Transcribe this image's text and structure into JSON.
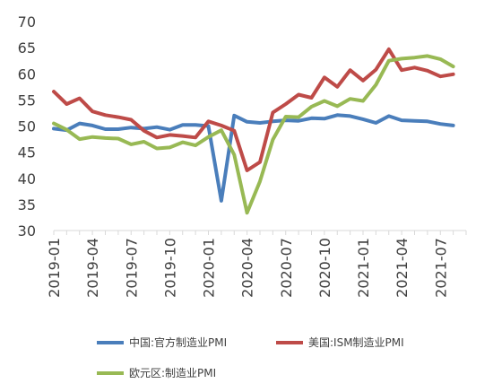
{
  "chart_data": {
    "type": "line",
    "title": "",
    "xlabel": "",
    "ylabel": "",
    "ylim": [
      30,
      70
    ],
    "yticks": [
      30,
      35,
      40,
      45,
      50,
      55,
      60,
      65,
      70
    ],
    "grid": false,
    "legend_position": "bottom",
    "x": [
      "2019-01",
      "2019-02",
      "2019-03",
      "2019-04",
      "2019-05",
      "2019-06",
      "2019-07",
      "2019-08",
      "2019-09",
      "2019-10",
      "2019-11",
      "2019-12",
      "2020-01",
      "2020-02",
      "2020-03",
      "2020-04",
      "2020-05",
      "2020-06",
      "2020-07",
      "2020-08",
      "2020-09",
      "2020-10",
      "2020-11",
      "2020-12",
      "2021-01",
      "2021-02",
      "2021-03",
      "2021-04",
      "2021-05",
      "2021-06",
      "2021-07",
      "2021-08",
      "2021-09"
    ],
    "xtick_labels": [
      "2019-01",
      "2019-04",
      "2019-07",
      "2019-10",
      "2020-01",
      "2020-04",
      "2020-07",
      "2020-10",
      "2021-01",
      "2021-04",
      "2021-07"
    ],
    "series": [
      {
        "name": "中国:官方制造业PMI",
        "color": "#4a7ebb",
        "values": [
          49.5,
          49.2,
          50.5,
          50.1,
          49.4,
          49.4,
          49.7,
          49.5,
          49.8,
          49.3,
          50.2,
          50.2,
          50.0,
          35.7,
          52.0,
          50.8,
          50.6,
          50.9,
          51.1,
          51.0,
          51.5,
          51.4,
          52.1,
          51.9,
          51.3,
          50.6,
          51.9,
          51.1,
          51.0,
          50.9,
          50.4,
          50.1,
          null
        ]
      },
      {
        "name": "美国:ISM制造业PMI",
        "color": "#be4b48",
        "values": [
          56.6,
          54.2,
          55.3,
          52.8,
          52.1,
          51.7,
          51.2,
          49.1,
          47.8,
          48.3,
          48.1,
          47.8,
          50.9,
          50.1,
          49.1,
          41.5,
          43.1,
          52.6,
          54.2,
          56.0,
          55.4,
          59.3,
          57.5,
          60.7,
          58.7,
          60.8,
          64.7,
          60.7,
          61.2,
          60.6,
          59.5,
          59.9,
          null
        ]
      },
      {
        "name": "欧元区:制造业PMI",
        "color": "#98b954",
        "values": [
          50.5,
          49.3,
          47.5,
          47.9,
          47.7,
          47.6,
          46.5,
          47.0,
          45.7,
          45.9,
          46.9,
          46.3,
          47.9,
          49.2,
          44.5,
          33.4,
          39.4,
          47.4,
          51.8,
          51.7,
          53.7,
          54.8,
          53.8,
          55.2,
          54.8,
          57.9,
          62.5,
          62.9,
          63.1,
          63.4,
          62.8,
          61.4,
          null
        ]
      }
    ]
  }
}
